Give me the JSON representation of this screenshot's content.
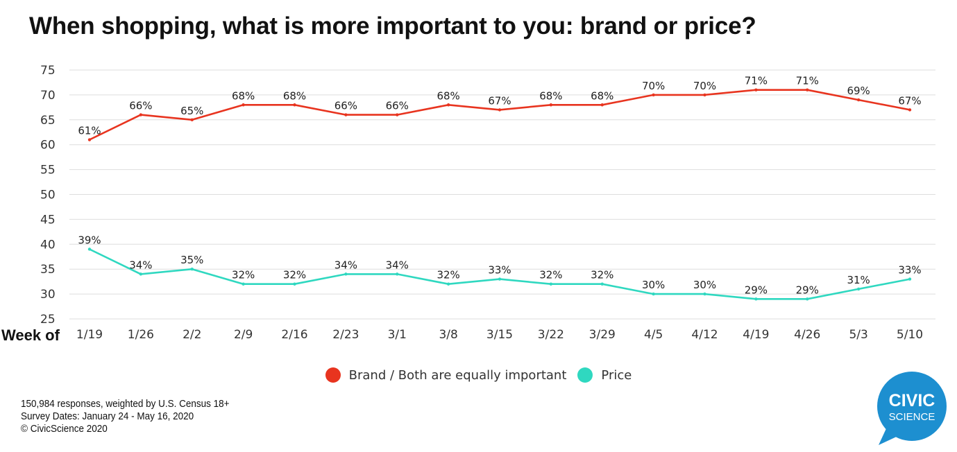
{
  "chart_data": {
    "type": "line",
    "title": "When shopping, what is more important to you: brand or price?",
    "xlabel": "Week of",
    "ylabel": "",
    "ylim": [
      25,
      75
    ],
    "yticks": [
      25,
      30,
      35,
      40,
      45,
      50,
      55,
      60,
      65,
      70,
      75
    ],
    "grid": true,
    "categories": [
      "1/19",
      "1/26",
      "2/2",
      "2/9",
      "2/16",
      "2/23",
      "3/1",
      "3/8",
      "3/15",
      "3/22",
      "3/29",
      "4/5",
      "4/12",
      "4/19",
      "4/26",
      "5/3",
      "5/10"
    ],
    "series": [
      {
        "name": "Brand / Both are equally important",
        "color": "#e8341f",
        "values": [
          61,
          66,
          65,
          68,
          68,
          66,
          66,
          68,
          67,
          68,
          68,
          70,
          70,
          71,
          71,
          69,
          67
        ]
      },
      {
        "name": "Price",
        "color": "#2fd8c0",
        "values": [
          39,
          34,
          35,
          32,
          32,
          34,
          34,
          32,
          33,
          32,
          32,
          30,
          30,
          29,
          29,
          31,
          33
        ]
      }
    ],
    "label_suffix": "%",
    "legend_position": "bottom-center"
  },
  "footnote": {
    "line1": "150,984 responses, weighted by U.S. Census 18+",
    "line2": "Survey Dates: January 24 - May 16, 2020",
    "line3": "© CivicScience 2020"
  },
  "logo": {
    "line1": "CIVIC",
    "line2": "SCIENCE",
    "color": "#1d8fd0"
  }
}
